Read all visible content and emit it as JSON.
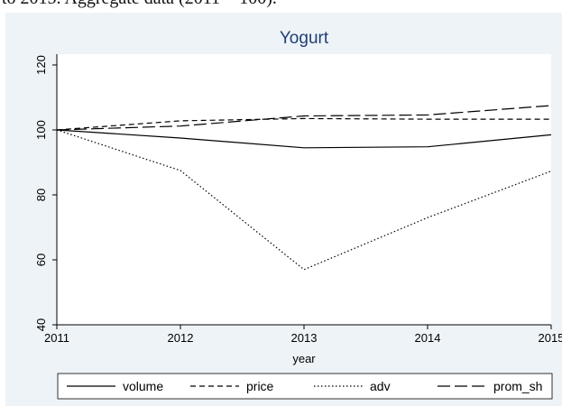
{
  "caption": "to 2015. Aggregate data (2011 = 100).",
  "chart_data": {
    "type": "line",
    "title": "Yogurt",
    "xlabel": "year",
    "ylabel": "",
    "x": [
      2011,
      2012,
      2013,
      2014,
      2015
    ],
    "xticks": [
      "2011",
      "2012",
      "2013",
      "2014",
      "2015"
    ],
    "yticks": [
      "40",
      "60",
      "80",
      "100",
      "120"
    ],
    "ylim": [
      40,
      120
    ],
    "grid": false,
    "legend_position": "bottom",
    "series": [
      {
        "name": "volume",
        "values": [
          100,
          97.5,
          94.5,
          94.8,
          98.5
        ],
        "dash": "solid"
      },
      {
        "name": "price",
        "values": [
          100,
          102.8,
          103.5,
          103.3,
          103.3
        ],
        "dash": "short-dash"
      },
      {
        "name": "adv",
        "values": [
          100,
          87.5,
          57.0,
          73.0,
          87.3
        ],
        "dash": "dotted"
      },
      {
        "name": "prom_sh",
        "values": [
          100,
          101.2,
          104.3,
          104.6,
          107.5
        ],
        "dash": "long-dash"
      }
    ],
    "colors": {
      "line": "#000000",
      "title": "#1f3f73",
      "panel_background": "#eef3f7",
      "plot_background": "#ffffff"
    }
  }
}
